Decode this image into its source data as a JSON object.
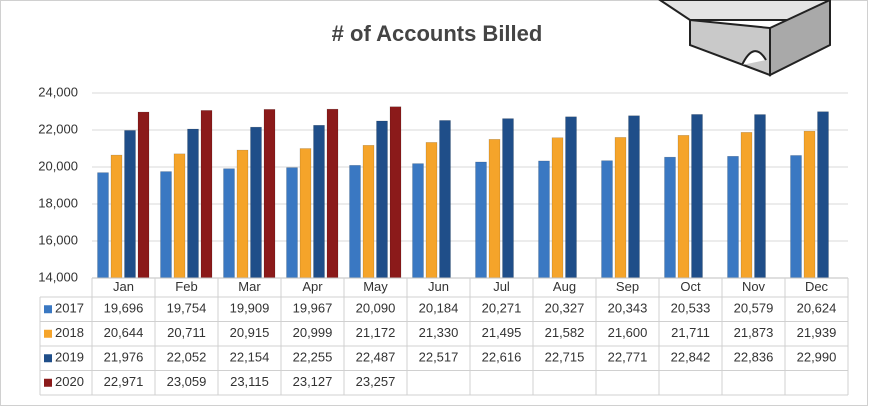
{
  "chart_data": {
    "type": "bar",
    "title": "# of Accounts Billed",
    "categories": [
      "Jan",
      "Feb",
      "Mar",
      "Apr",
      "May",
      "Jun",
      "Jul",
      "Aug",
      "Sep",
      "Oct",
      "Nov",
      "Dec"
    ],
    "ylim": [
      14000,
      24000
    ],
    "yticks": [
      {
        "value": 14000,
        "label": "14,000"
      },
      {
        "value": 16000,
        "label": "16,000"
      },
      {
        "value": 18000,
        "label": "18,000"
      },
      {
        "value": 20000,
        "label": "20,000"
      },
      {
        "value": 22000,
        "label": "22,000"
      },
      {
        "value": 24000,
        "label": "24,000"
      }
    ],
    "grid": true,
    "series": [
      {
        "name": "2017",
        "color": "#3a78c2",
        "values": [
          19696,
          19754,
          19909,
          19967,
          20090,
          20184,
          20271,
          20327,
          20343,
          20533,
          20579,
          20624
        ],
        "value_labels": [
          "19,696",
          "19,754",
          "19,909",
          "19,967",
          "20,090",
          "20,184",
          "20,271",
          "20,327",
          "20,343",
          "20,533",
          "20,579",
          "20,624"
        ]
      },
      {
        "name": "2018",
        "color": "#f5a42a",
        "values": [
          20644,
          20711,
          20915,
          20999,
          21172,
          21330,
          21495,
          21582,
          21600,
          21711,
          21873,
          21939
        ],
        "value_labels": [
          "20,644",
          "20,711",
          "20,915",
          "20,999",
          "21,172",
          "21,330",
          "21,495",
          "21,582",
          "21,600",
          "21,711",
          "21,873",
          "21,939"
        ]
      },
      {
        "name": "2019",
        "color": "#1f4e89",
        "values": [
          21976,
          22052,
          22154,
          22255,
          22487,
          22517,
          22616,
          22715,
          22771,
          22842,
          22836,
          22990
        ],
        "value_labels": [
          "21,976",
          "22,052",
          "22,154",
          "22,255",
          "22,487",
          "22,517",
          "22,616",
          "22,715",
          "22,771",
          "22,842",
          "22,836",
          "22,990"
        ]
      },
      {
        "name": "2020",
        "color": "#8b1a1a",
        "values": [
          22971,
          23059,
          23115,
          23127,
          23257,
          null,
          null,
          null,
          null,
          null,
          null,
          null
        ],
        "value_labels": [
          "22,971",
          "23,059",
          "23,115",
          "23,127",
          "23,257",
          null,
          null,
          null,
          null,
          null,
          null,
          null
        ]
      }
    ]
  }
}
